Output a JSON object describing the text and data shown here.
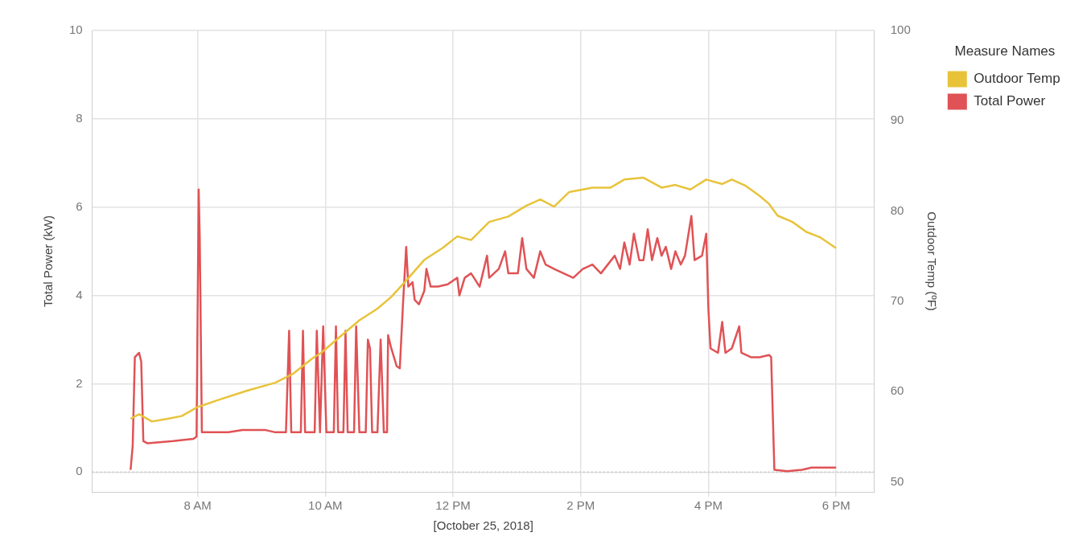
{
  "chart_data": {
    "type": "line",
    "xlabel": "[October 25, 2018]",
    "ylabel": "Total Power (kW)",
    "y2label": "Outdoor Temp (ºF)",
    "legend_title": "Measure Names",
    "legend": "right",
    "grid": true,
    "marker": "none",
    "line_style": "solid",
    "xlim": [
      "2018-10-25T06:21",
      "2018-10-25T18:36"
    ],
    "xticks": [
      {
        "value": "2018-10-25T08:00",
        "label": "8 AM"
      },
      {
        "value": "2018-10-25T10:00",
        "label": "10 AM"
      },
      {
        "value": "2018-10-25T12:00",
        "label": "12 PM"
      },
      {
        "value": "2018-10-25T14:00",
        "label": "2 PM"
      },
      {
        "value": "2018-10-25T16:00",
        "label": "4 PM"
      },
      {
        "value": "2018-10-25T18:00",
        "label": "6 PM"
      }
    ],
    "ylim": [
      -0.45,
      10
    ],
    "yticks": [
      0,
      2,
      4,
      6,
      8,
      10
    ],
    "y2lim": [
      48.9,
      100
    ],
    "y2ticks": [
      50,
      60,
      70,
      80,
      90,
      100
    ],
    "ref_lines": [
      {
        "axis": "y",
        "value": 0,
        "color": "#c8c8c8",
        "line_style": "dotted"
      }
    ],
    "series": [
      {
        "name": "Outdoor Temp",
        "color": "#e8c33a",
        "axis": "y2",
        "x": [
          "2018-10-25T06:57",
          "2018-10-25T07:05",
          "2018-10-25T07:17",
          "2018-10-25T07:32",
          "2018-10-25T07:45",
          "2018-10-25T08:00",
          "2018-10-25T08:20",
          "2018-10-25T08:46",
          "2018-10-25T09:13",
          "2018-10-25T09:30",
          "2018-10-25T09:48",
          "2018-10-25T09:56",
          "2018-10-25T10:14",
          "2018-10-25T10:32",
          "2018-10-25T10:49",
          "2018-10-25T11:02",
          "2018-10-25T11:16",
          "2018-10-25T11:33",
          "2018-10-25T11:50",
          "2018-10-25T12:04",
          "2018-10-25T12:17",
          "2018-10-25T12:34",
          "2018-10-25T12:52",
          "2018-10-25T13:09",
          "2018-10-25T13:22",
          "2018-10-25T13:35",
          "2018-10-25T13:49",
          "2018-10-25T14:11",
          "2018-10-25T14:28",
          "2018-10-25T14:41",
          "2018-10-25T14:59",
          "2018-10-25T15:16",
          "2018-10-25T15:29",
          "2018-10-25T15:43",
          "2018-10-25T15:58",
          "2018-10-25T16:13",
          "2018-10-25T16:22",
          "2018-10-25T16:35",
          "2018-10-25T16:48",
          "2018-10-25T16:57",
          "2018-10-25T17:05",
          "2018-10-25T17:19",
          "2018-10-25T17:32",
          "2018-10-25T17:45",
          "2018-10-25T18:00"
        ],
        "values": [
          57.0,
          57.5,
          56.7,
          57.0,
          57.3,
          58.3,
          59.1,
          60.1,
          61.0,
          62.0,
          63.7,
          64.3,
          66.1,
          67.9,
          69.2,
          70.5,
          72.3,
          74.6,
          75.9,
          77.2,
          76.8,
          78.8,
          79.4,
          80.6,
          81.3,
          80.5,
          82.1,
          82.6,
          82.6,
          83.5,
          83.7,
          82.6,
          82.9,
          82.4,
          83.5,
          83.0,
          83.5,
          82.8,
          81.7,
          80.8,
          79.5,
          78.8,
          77.7,
          77.1,
          75.9
        ]
      },
      {
        "name": "Total Power",
        "color": "#e05255",
        "axis": "y",
        "x": [
          "2018-10-25T06:57",
          "2018-10-25T06:59",
          "2018-10-25T07:01",
          "2018-10-25T07:05",
          "2018-10-25T07:07",
          "2018-10-25T07:09",
          "2018-10-25T07:13",
          "2018-10-25T07:37",
          "2018-10-25T07:56",
          "2018-10-25T07:59",
          "2018-10-25T08:01",
          "2018-10-25T08:02",
          "2018-10-25T08:04",
          "2018-10-25T08:29",
          "2018-10-25T08:42",
          "2018-10-25T09:04",
          "2018-10-25T09:13",
          "2018-10-25T09:23",
          "2018-10-25T09:26",
          "2018-10-25T09:28",
          "2018-10-25T09:37",
          "2018-10-25T09:39",
          "2018-10-25T09:41",
          "2018-10-25T09:50",
          "2018-10-25T09:52",
          "2018-10-25T09:55",
          "2018-10-25T09:58",
          "2018-10-25T10:01",
          "2018-10-25T10:08",
          "2018-10-25T10:10",
          "2018-10-25T10:12",
          "2018-10-25T10:17",
          "2018-10-25T10:19",
          "2018-10-25T10:21",
          "2018-10-25T10:27",
          "2018-10-25T10:29",
          "2018-10-25T10:32",
          "2018-10-25T10:38",
          "2018-10-25T10:40",
          "2018-10-25T10:42",
          "2018-10-25T10:44",
          "2018-10-25T10:49",
          "2018-10-25T10:52",
          "2018-10-25T10:55",
          "2018-10-25T10:58",
          "2018-10-25T10:59",
          "2018-10-25T11:02",
          "2018-10-25T11:07",
          "2018-10-25T11:10",
          "2018-10-25T11:13",
          "2018-10-25T11:16",
          "2018-10-25T11:18",
          "2018-10-25T11:22",
          "2018-10-25T11:24",
          "2018-10-25T11:28",
          "2018-10-25T11:33",
          "2018-10-25T11:35",
          "2018-10-25T11:39",
          "2018-10-25T11:46",
          "2018-10-25T11:55",
          "2018-10-25T12:04",
          "2018-10-25T12:06",
          "2018-10-25T12:11",
          "2018-10-25T12:17",
          "2018-10-25T12:25",
          "2018-10-25T12:32",
          "2018-10-25T12:34",
          "2018-10-25T12:43",
          "2018-10-25T12:49",
          "2018-10-25T12:52",
          "2018-10-25T13:01",
          "2018-10-25T13:05",
          "2018-10-25T13:09",
          "2018-10-25T13:16",
          "2018-10-25T13:22",
          "2018-10-25T13:27",
          "2018-10-25T13:35",
          "2018-10-25T13:44",
          "2018-10-25T13:53",
          "2018-10-25T14:02",
          "2018-10-25T14:11",
          "2018-10-25T14:19",
          "2018-10-25T14:32",
          "2018-10-25T14:37",
          "2018-10-25T14:41",
          "2018-10-25T14:46",
          "2018-10-25T14:50",
          "2018-10-25T14:55",
          "2018-10-25T14:59",
          "2018-10-25T15:03",
          "2018-10-25T15:07",
          "2018-10-25T15:12",
          "2018-10-25T15:16",
          "2018-10-25T15:20",
          "2018-10-25T15:25",
          "2018-10-25T15:29",
          "2018-10-25T15:34",
          "2018-10-25T15:38",
          "2018-10-25T15:44",
          "2018-10-25T15:47",
          "2018-10-25T15:54",
          "2018-10-25T15:58",
          "2018-10-25T16:00",
          "2018-10-25T16:02",
          "2018-10-25T16:09",
          "2018-10-25T16:13",
          "2018-10-25T16:16",
          "2018-10-25T16:22",
          "2018-10-25T16:29",
          "2018-10-25T16:31",
          "2018-10-25T16:40",
          "2018-10-25T16:48",
          "2018-10-25T16:57",
          "2018-10-25T16:59",
          "2018-10-25T17:02",
          "2018-10-25T17:14",
          "2018-10-25T17:28",
          "2018-10-25T17:37",
          "2018-10-25T18:00"
        ],
        "values": [
          0.05,
          0.6,
          2.6,
          2.7,
          2.5,
          0.7,
          0.65,
          0.7,
          0.75,
          0.8,
          6.4,
          5.3,
          0.9,
          0.9,
          0.95,
          0.95,
          0.9,
          0.9,
          3.2,
          0.9,
          0.9,
          3.2,
          0.9,
          0.9,
          3.2,
          0.9,
          3.3,
          0.9,
          0.9,
          3.3,
          0.9,
          0.9,
          3.2,
          0.9,
          0.9,
          3.3,
          0.9,
          0.9,
          3.0,
          2.8,
          0.9,
          0.9,
          3.0,
          0.9,
          0.9,
          3.1,
          2.8,
          2.4,
          2.35,
          3.8,
          5.1,
          4.2,
          4.3,
          3.9,
          3.8,
          4.1,
          4.6,
          4.2,
          4.2,
          4.25,
          4.4,
          4.0,
          4.4,
          4.5,
          4.2,
          4.9,
          4.4,
          4.6,
          5.0,
          4.5,
          4.5,
          5.3,
          4.6,
          4.4,
          5.0,
          4.7,
          4.6,
          4.5,
          4.4,
          4.6,
          4.7,
          4.5,
          4.9,
          4.6,
          5.2,
          4.7,
          5.4,
          4.8,
          4.8,
          5.5,
          4.8,
          5.3,
          4.9,
          5.1,
          4.6,
          5.0,
          4.7,
          4.9,
          5.8,
          4.8,
          4.9,
          5.4,
          3.7,
          2.8,
          2.7,
          3.4,
          2.7,
          2.8,
          3.3,
          2.7,
          2.6,
          2.6,
          2.65,
          2.6,
          0.05,
          0.02,
          0.05,
          0.1,
          0.1
        ]
      }
    ]
  }
}
